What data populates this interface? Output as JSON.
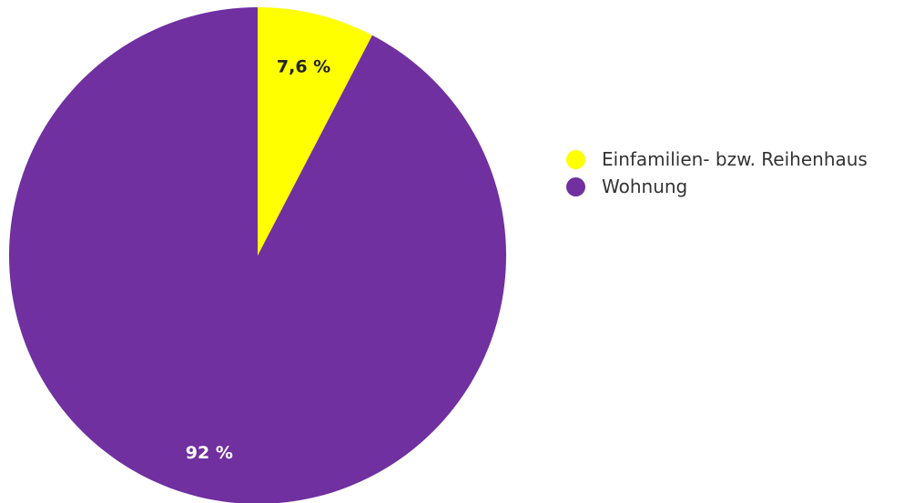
{
  "chart_data": {
    "type": "pie",
    "title": "",
    "categories": [
      "Einfamilien- bzw. Reihenhaus",
      "Wohnung"
    ],
    "values": [
      7.6,
      92
    ],
    "value_labels": [
      "7,6 %",
      "92 %"
    ],
    "colors": [
      "#ffff00",
      "#7030a0"
    ],
    "legend_position": "right",
    "start_angle": "12 o'clock, clockwise"
  },
  "legend": {
    "items": [
      {
        "label": "Einfamilien- bzw. Reihenhaus",
        "color": "#ffff00"
      },
      {
        "label": "Wohnung",
        "color": "#7030a0"
      }
    ]
  }
}
